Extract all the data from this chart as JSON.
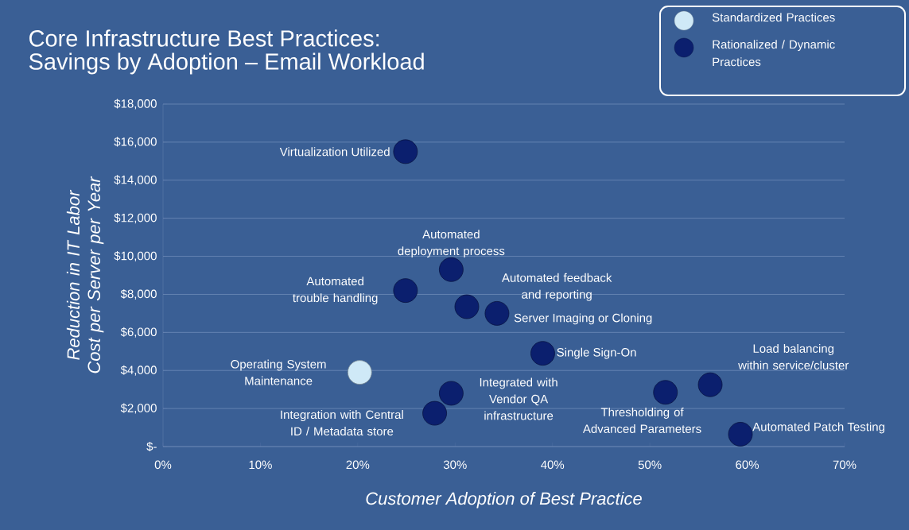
{
  "chart_data": {
    "type": "scatter",
    "title": "Core Infrastructure Best Practices:",
    "subtitle": "Savings by Adoption – Email Workload",
    "xlabel": "Customer Adoption of Best Practice",
    "ylabel": "Reduction in IT Labor Cost per Server per Year",
    "series": [
      {
        "name": "Standardized Practices",
        "color": "#cfe9f7",
        "x": [
          20.2
        ],
        "values": [
          3900
        ]
      },
      {
        "name": "Rationalized / Dynamic Practices",
        "color": "#0b1f6e",
        "x": [
          24.9,
          29.6,
          24.9,
          31.2,
          34.3,
          39.0,
          29.6,
          27.9,
          51.6,
          56.2,
          59.3
        ],
        "values": [
          15500,
          9300,
          8200,
          7350,
          7000,
          4900,
          2800,
          1750,
          2850,
          3250,
          650
        ]
      }
    ],
    "annotations": [
      {
        "text": "Operating System Maintenance",
        "x": 20.2,
        "y": 3900
      },
      {
        "text": "Virtualization Utilized",
        "x": 24.9,
        "y": 15500
      },
      {
        "text": "Automated deployment process",
        "x": 29.6,
        "y": 9300
      },
      {
        "text": "Automated trouble handling",
        "x": 24.9,
        "y": 8200
      },
      {
        "text": "Automated feedback and reporting",
        "x": 31.2,
        "y": 7350
      },
      {
        "text": "Server Imaging or Cloning",
        "x": 34.3,
        "y": 7000
      },
      {
        "text": "Single Sign-On",
        "x": 39.0,
        "y": 4900
      },
      {
        "text": "Integrated with Vendor QA infrastructure",
        "x": 29.6,
        "y": 2800
      },
      {
        "text": "Integration with Central ID / Metadata store",
        "x": 27.9,
        "y": 1750
      },
      {
        "text": "Thresholding of Advanced Parameters",
        "x": 51.6,
        "y": 2850
      },
      {
        "text": "Load balancing within service/cluster",
        "x": 56.2,
        "y": 3250
      },
      {
        "text": "Automated Patch Testing",
        "x": 59.3,
        "y": 650
      }
    ],
    "xlim": [
      0,
      70
    ],
    "ylim": [
      0,
      18000
    ],
    "xticks": [
      {
        "value": 0,
        "label": "0%"
      },
      {
        "value": 10,
        "label": "10%"
      },
      {
        "value": 20,
        "label": "20%"
      },
      {
        "value": 30,
        "label": "30%"
      },
      {
        "value": 40,
        "label": "40%"
      },
      {
        "value": 50,
        "label": "50%"
      },
      {
        "value": 60,
        "label": "60%"
      },
      {
        "value": 70,
        "label": "70%"
      }
    ],
    "yticks": [
      {
        "value": 0,
        "label": "$-"
      },
      {
        "value": 2000,
        "label": "$2,000"
      },
      {
        "value": 4000,
        "label": "$4,000"
      },
      {
        "value": 6000,
        "label": "$6,000"
      },
      {
        "value": 8000,
        "label": "$8,000"
      },
      {
        "value": 10000,
        "label": "$10,000"
      },
      {
        "value": 12000,
        "label": "$12,000"
      },
      {
        "value": 14000,
        "label": "$14,000"
      },
      {
        "value": 16000,
        "label": "$16,000"
      },
      {
        "value": 18000,
        "label": "$18,000"
      }
    ],
    "grid": "y",
    "legend": "top right",
    "marker": "circle"
  }
}
